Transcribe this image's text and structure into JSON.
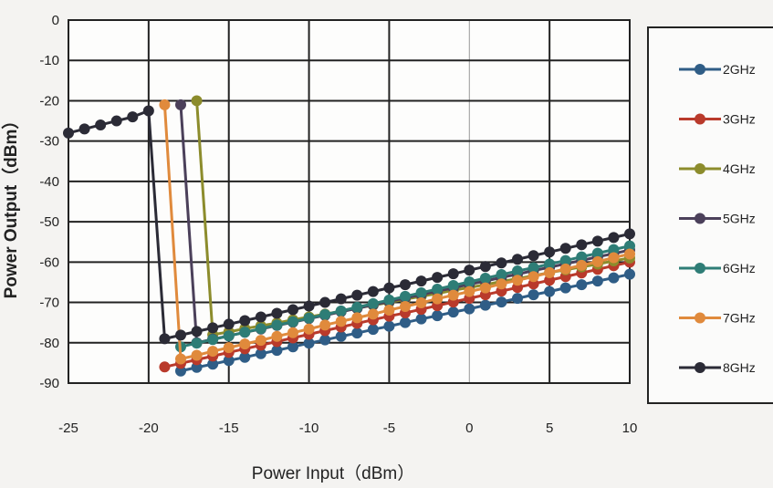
{
  "chart_data": {
    "type": "line",
    "title": "",
    "xlabel": "Power Input（dBm）",
    "ylabel": "Power Output（dBm）",
    "xlim": [
      -25,
      10
    ],
    "ylim": [
      -90,
      0
    ],
    "xticks": [
      -25,
      -20,
      -15,
      -10,
      -5,
      0,
      5,
      10
    ],
    "yticks": [
      0,
      -10,
      -20,
      -30,
      -40,
      -50,
      -60,
      -70,
      -80,
      -90
    ],
    "grid": true,
    "legend_position": "right",
    "series": [
      {
        "name": "2GHz",
        "color": "#2f5d86",
        "x_start": -18,
        "x_step": 1,
        "y": [
          -87,
          -86.1,
          -85.3,
          -84.4,
          -83.6,
          -82.7,
          -81.9,
          -81,
          -80.1,
          -79.3,
          -78.4,
          -77.6,
          -76.7,
          -75.9,
          -75,
          -74.1,
          -73.3,
          -72.4,
          -71.6,
          -70.7,
          -69.9,
          -69,
          -68.1,
          -67.3,
          -66.4,
          -65.6,
          -64.7,
          -63.9,
          -63
        ]
      },
      {
        "name": "3GHz",
        "color": "#b93a2b",
        "x_start": -19,
        "x_step": 1,
        "y": [
          -86,
          -85.1,
          -84.2,
          -83.3,
          -82.4,
          -81.5,
          -80.6,
          -79.7,
          -78.8,
          -77.9,
          -77,
          -76.1,
          -75.2,
          -74.3,
          -73.4,
          -72.6,
          -71.7,
          -70.8,
          -69.9,
          -69,
          -68.1,
          -67.2,
          -66.3,
          -65.4,
          -64.5,
          -63.6,
          -62.7,
          -61.8,
          -60.9,
          -60
        ]
      },
      {
        "name": "4GHz",
        "color": "#8c8c2c",
        "x_start": -17,
        "x_step": 1,
        "y": [
          -20,
          -78,
          -77.3,
          -76.5,
          -75.8,
          -75.1,
          -74.3,
          -73.6,
          -72.9,
          -72.2,
          -71.4,
          -70.7,
          -70,
          -69.2,
          -68.5,
          -67.8,
          -67,
          -66.3,
          -65.6,
          -64.8,
          -64.1,
          -63.4,
          -62.6,
          -61.9,
          -61.2,
          -60.5,
          -59.7,
          -59
        ]
      },
      {
        "name": "5GHz",
        "color": "#4b405a",
        "x_start": -18,
        "x_step": 1,
        "y": [
          -21,
          -80,
          -79.1,
          -78.3,
          -77.4,
          -76.6,
          -75.7,
          -74.9,
          -74,
          -73.2,
          -72.3,
          -71.5,
          -70.6,
          -69.8,
          -68.9,
          -68.1,
          -67.2,
          -66.4,
          -65.5,
          -64.7,
          -63.8,
          -63,
          -62.1,
          -61.3,
          -60.4,
          -59.6,
          -58.7,
          -57.9,
          -57
        ]
      },
      {
        "name": "6GHz",
        "color": "#2e7d76",
        "x_start": -18,
        "x_step": 1,
        "y": [
          -81,
          -80.1,
          -79.2,
          -78.3,
          -77.4,
          -76.5,
          -75.6,
          -74.8,
          -73.9,
          -73,
          -72.1,
          -71.2,
          -70.3,
          -69.4,
          -68.5,
          -67.6,
          -66.7,
          -65.8,
          -64.9,
          -64,
          -63.1,
          -62.2,
          -61.4,
          -60.5,
          -59.6,
          -58.7,
          -57.8,
          -56.9,
          -56
        ]
      },
      {
        "name": "7GHz",
        "color": "#e08a3c",
        "x_start": -19,
        "x_step": 1,
        "y": [
          -21,
          -84,
          -83.1,
          -82.1,
          -81.2,
          -80.3,
          -79.4,
          -78.4,
          -77.5,
          -76.6,
          -75.6,
          -74.7,
          -73.8,
          -72.9,
          -71.9,
          -71,
          -70.1,
          -69.1,
          -68.2,
          -67.3,
          -66.4,
          -65.4,
          -64.5,
          -63.6,
          -62.6,
          -61.7,
          -60.8,
          -59.9,
          -58.9,
          -58
        ]
      },
      {
        "name": "8GHz",
        "color": "#2b2b36",
        "x_start": -25,
        "x_step": 1,
        "y": [
          -28,
          -27,
          -26,
          -25,
          -24,
          -22.5,
          -79,
          -78.1,
          -77.2,
          -76.3,
          -75.4,
          -74.5,
          -73.6,
          -72.7,
          -71.8,
          -70.9,
          -70,
          -69.1,
          -68.2,
          -67.3,
          -66.4,
          -65.6,
          -64.7,
          -63.8,
          -62.9,
          -62,
          -61.1,
          -60.2,
          -59.3,
          -58.4,
          -57.5,
          -56.6,
          -55.7,
          -54.8,
          -53.9,
          -53
        ]
      }
    ]
  }
}
